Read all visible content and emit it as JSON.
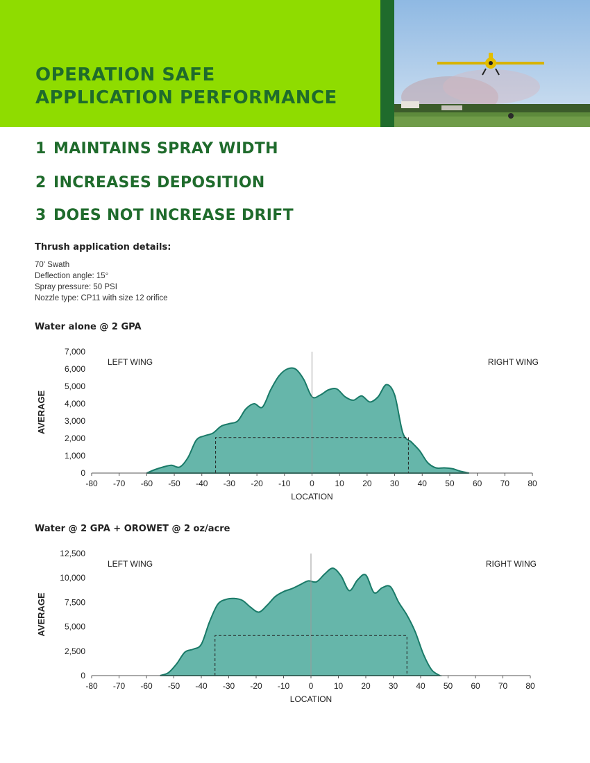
{
  "header": {
    "title_lines": [
      "OPERATION SAFE",
      "APPLICATION PERFORMANCE"
    ],
    "photo_icon": "crop-duster-airplane-photo"
  },
  "features": [
    {
      "number": "1",
      "label": "MAINTAINS SPRAY WIDTH"
    },
    {
      "number": "2",
      "label": "INCREASES DEPOSITION"
    },
    {
      "number": "3",
      "label": "DOES NOT INCREASE DRIFT"
    }
  ],
  "details": {
    "heading": "Thrush application details:",
    "items": [
      "70' Swath",
      "Deflection angle: 15°",
      "Spray pressure: 50 PSI",
      "Nozzle type: CP11 with size 12 orifice"
    ]
  },
  "colors": {
    "brand_green": "#1f6b2c",
    "lime": "#8fdc00",
    "fill": "#66b6aa",
    "stroke": "#1a7a68"
  },
  "chart_data": [
    {
      "type": "area",
      "title": "Water alone @ 2 GPA",
      "xlabel": "LOCATION",
      "ylabel": "AVERAGE",
      "xlim": [
        -80,
        80
      ],
      "ylim": [
        0,
        7000
      ],
      "xticks": [
        "-80",
        "-70",
        "-60",
        "-50",
        "-40",
        "-30",
        "-20",
        "-10",
        "0",
        "10",
        "20",
        "30",
        "40",
        "50",
        "60",
        "70",
        "80"
      ],
      "yticks": [
        "0",
        "1,000",
        "2,000",
        "3,000",
        "4,000",
        "5,000",
        "6,000",
        "7,000"
      ],
      "annotations": [
        "LEFT WING",
        "RIGHT WING"
      ],
      "swath": {
        "x": [
          -35,
          35
        ],
        "y": 2050
      },
      "x": [
        -60,
        -57,
        -54,
        -51,
        -48,
        -45,
        -42,
        -39,
        -36,
        -33,
        -30,
        -27,
        -24,
        -21,
        -18,
        -15,
        -12,
        -9,
        -6,
        -3,
        0,
        3,
        6,
        9,
        12,
        15,
        18,
        21,
        24,
        27,
        30,
        33,
        36,
        39,
        42,
        45,
        48,
        51,
        54,
        57
      ],
      "values": [
        0,
        200,
        350,
        450,
        350,
        900,
        1900,
        2150,
        2300,
        2700,
        2850,
        3000,
        3700,
        4000,
        3800,
        4800,
        5600,
        6000,
        6000,
        5400,
        4400,
        4500,
        4800,
        4850,
        4400,
        4200,
        4450,
        4100,
        4400,
        5100,
        4500,
        2300,
        1800,
        1300,
        600,
        300,
        300,
        250,
        100,
        0
      ]
    },
    {
      "type": "area",
      "title": "Water @ 2 GPA + OROWET @ 2 oz/acre",
      "xlabel": "LOCATION",
      "ylabel": "AVERAGE",
      "xlim": [
        -80,
        80
      ],
      "ylim": [
        0,
        12500
      ],
      "xticks": [
        "-80",
        "-70",
        "-60",
        "-50",
        "-40",
        "-30",
        "-20",
        "-10",
        "0",
        "10",
        "20",
        "30",
        "40",
        "50",
        "60",
        "70",
        "80"
      ],
      "yticks": [
        "0",
        "2,500",
        "5,000",
        "7,500",
        "10,000",
        "12,500"
      ],
      "annotations": [
        "LEFT WING",
        "RIGHT WING"
      ],
      "swath": {
        "x": [
          -35,
          35
        ],
        "y": 4100
      },
      "x": [
        -55,
        -52,
        -49,
        -46,
        -43,
        -40,
        -37,
        -34,
        -31,
        -28,
        -25,
        -22,
        -19,
        -16,
        -13,
        -10,
        -7,
        -4,
        -1,
        2,
        5,
        8,
        11,
        14,
        17,
        20,
        23,
        26,
        29,
        32,
        35,
        38,
        41,
        44,
        47
      ],
      "values": [
        0,
        300,
        1200,
        2400,
        2700,
        3200,
        5500,
        7300,
        7800,
        7900,
        7700,
        7000,
        6500,
        7200,
        8100,
        8600,
        8900,
        9300,
        9700,
        9600,
        10400,
        11000,
        10200,
        8700,
        9800,
        10300,
        8500,
        9000,
        9100,
        7500,
        6200,
        4500,
        2200,
        600,
        0
      ]
    }
  ]
}
